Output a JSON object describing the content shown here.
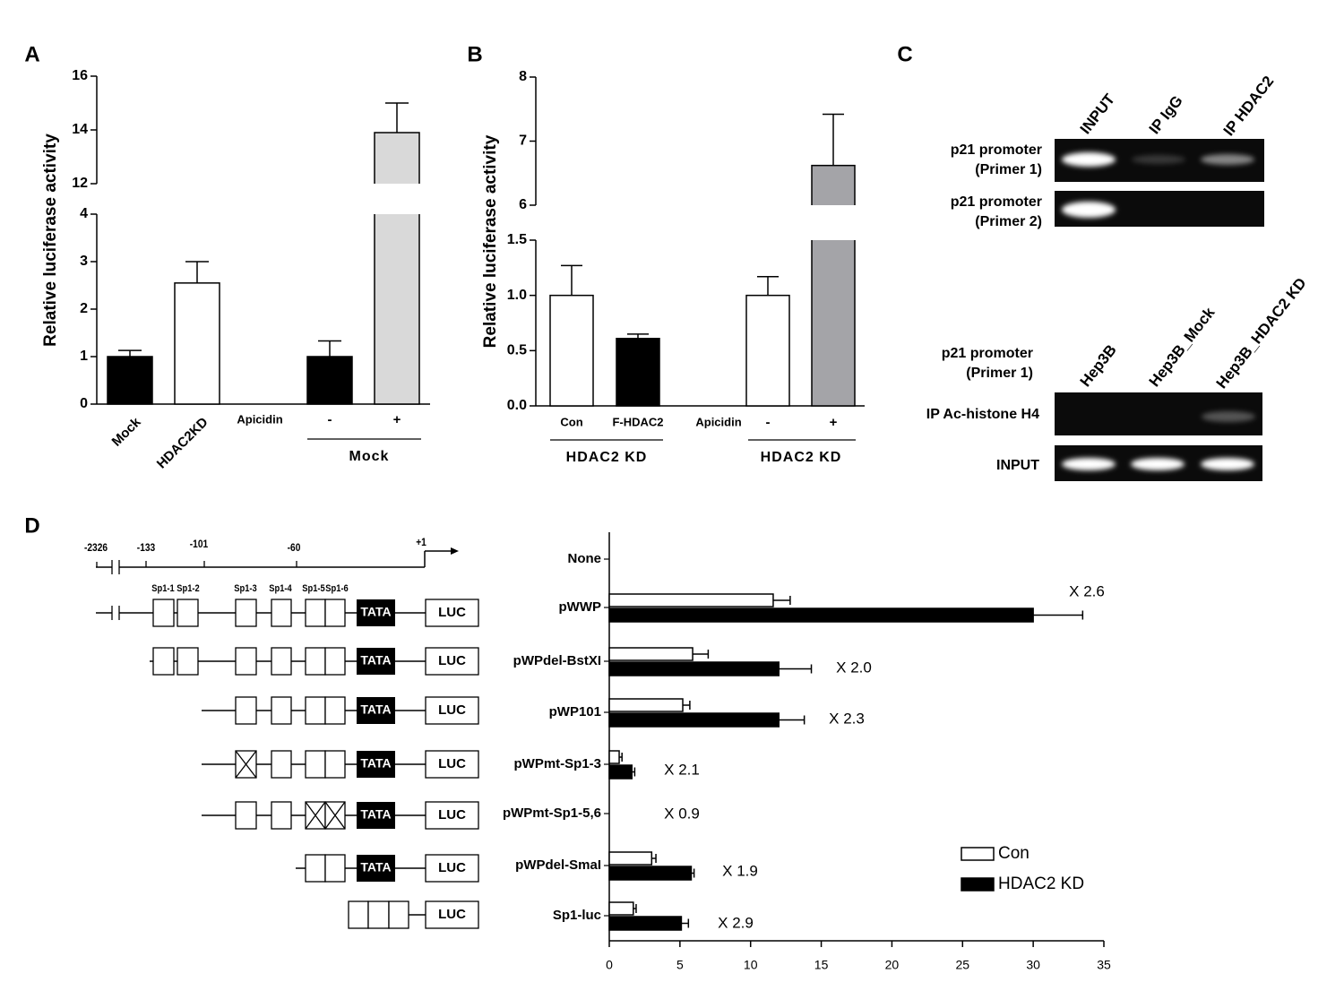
{
  "chart_data": [
    {
      "type": "bar",
      "label": "A",
      "y_label": "Relative luciferase activity",
      "categories": [
        "Mock",
        "HDAC2KD",
        "-",
        "+"
      ],
      "values": [
        1.0,
        2.55,
        1.0,
        13.9
      ],
      "errors": [
        0.13,
        0.45,
        0.33,
        1.1
      ],
      "colors": [
        "#000000",
        "#ffffff",
        "#000000",
        "#d9d9d9"
      ],
      "treatment_label": "Apicidin",
      "group_labels": [
        "Mock"
      ],
      "ylim": [
        0,
        16
      ],
      "ybreak": [
        4,
        12
      ],
      "yticks": [
        0,
        1,
        2,
        3,
        4,
        12,
        14,
        16
      ]
    },
    {
      "type": "bar",
      "label": "B",
      "y_label": "Relative luciferase activity",
      "categories": [
        "Con",
        "F-HDAC2",
        "-",
        "+"
      ],
      "values": [
        1.0,
        0.61,
        1.0,
        6.62
      ],
      "errors": [
        0.27,
        0.04,
        0.17,
        0.8
      ],
      "colors": [
        "#ffffff",
        "#000000",
        "#ffffff",
        "#a4a4a8"
      ],
      "treatment_label": "Apicidin",
      "group_labels": [
        "HDAC2 KD",
        "HDAC2 KD"
      ],
      "ylim": [
        0,
        8
      ],
      "ybreak": [
        1.5,
        6
      ],
      "yticks": [
        {
          "value": 0,
          "label": "0.0"
        },
        0.5,
        {
          "value": 1,
          "label": "1.0"
        },
        1.5,
        6,
        7,
        8
      ]
    },
    {
      "type": "hbar",
      "label": "D",
      "categories": [
        "None",
        "pWWP",
        "pWPdel-BstXI",
        "pWP101",
        "pWPmt-Sp1-3",
        "pWPmt-Sp1-5,6",
        "pWPdel-SmaI",
        "Sp1-luc"
      ],
      "series": [
        {
          "name": "Con",
          "color": "#ffffff",
          "values": [
            null,
            11.6,
            5.9,
            5.2,
            0.7,
            null,
            3.0,
            1.7
          ],
          "errors": [
            null,
            1.2,
            1.1,
            0.5,
            0.2,
            null,
            0.3,
            0.2
          ]
        },
        {
          "name": "HDAC2 KD",
          "color": "#000000",
          "values": [
            null,
            30.0,
            12.0,
            12.0,
            1.6,
            null,
            5.8,
            5.1
          ],
          "errors": [
            null,
            3.5,
            2.3,
            1.8,
            0.2,
            null,
            0.2,
            0.5
          ]
        }
      ],
      "annotations": [
        null,
        "X 2.6",
        "X 2.0",
        "X 2.3",
        "X 2.1",
        "X 0.9",
        "X 1.9",
        "X 2.9"
      ],
      "xlim": [
        0,
        35
      ],
      "xticks": [
        0,
        5,
        10,
        15,
        20,
        25,
        30,
        35
      ]
    }
  ],
  "panel_c": {
    "label": "C",
    "top": {
      "columns": [
        "INPUT",
        "IP IgG",
        "IP HDAC2"
      ],
      "rows": [
        [
          "p21 promoter",
          "(Primer 1)"
        ],
        [
          "p21 promoter",
          "(Primer 2)"
        ]
      ]
    },
    "bottom": {
      "target": [
        "p21 promoter",
        "(Primer 1)"
      ],
      "columns": [
        "Hep3B",
        "Hep3B_Mock",
        "Hep3B_HDAC2 KD"
      ],
      "rows": [
        "IP Ac-histone H4",
        "INPUT"
      ]
    }
  },
  "diagram": {
    "positions": [
      "-2326",
      "-133",
      "-101",
      "-60",
      "+1"
    ],
    "sites": [
      "Sp1-1",
      "Sp1-2",
      "Sp1-3",
      "Sp1-4",
      "Sp1-5",
      "Sp1-6"
    ],
    "tata": "TATA",
    "luc": "LUC"
  }
}
